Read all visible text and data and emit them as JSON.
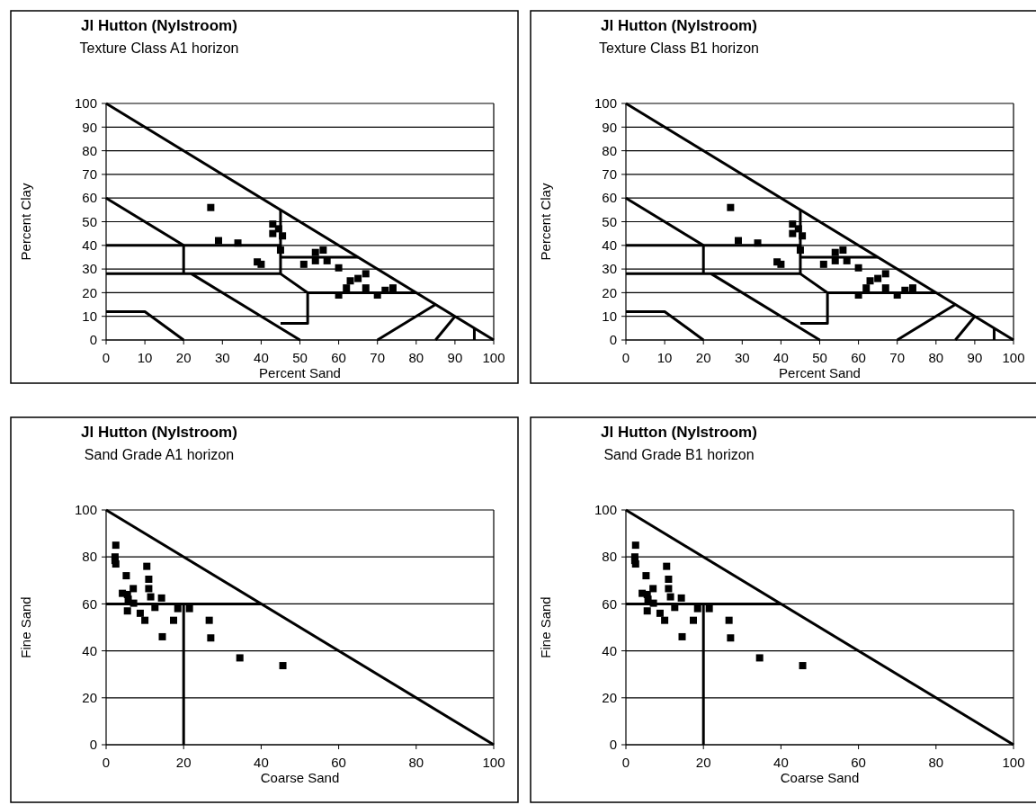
{
  "chart_data": [
    {
      "type": "scatter",
      "title": "Jl Hutton (Nylstroom)",
      "subtitle": "Texture Class A1 horizon",
      "xlabel": "Percent Sand",
      "ylabel": "Percent Clay",
      "xlim": [
        0,
        100
      ],
      "ylim": [
        0,
        100
      ],
      "xticks": [
        0,
        10,
        20,
        30,
        40,
        50,
        60,
        70,
        80,
        90,
        100
      ],
      "yticks": [
        0,
        10,
        20,
        30,
        40,
        50,
        60,
        70,
        80,
        90,
        100
      ],
      "grid": "y",
      "series": [
        {
          "type": "line",
          "color": "#000000",
          "x": [
            0,
            100
          ],
          "values": [
            100,
            0
          ]
        },
        {
          "type": "line",
          "color": "#000000",
          "x": [
            0,
            20
          ],
          "values": [
            60,
            40
          ]
        },
        {
          "type": "line",
          "color": "#000000",
          "x": [
            0,
            45
          ],
          "values": [
            40,
            40
          ]
        },
        {
          "type": "line",
          "color": "#000000",
          "x": [
            20,
            20
          ],
          "values": [
            40,
            28
          ]
        },
        {
          "type": "line",
          "color": "#000000",
          "x": [
            0,
            45
          ],
          "values": [
            28,
            28
          ]
        },
        {
          "type": "line",
          "color": "#000000",
          "x": [
            45,
            45
          ],
          "values": [
            55,
            28
          ]
        },
        {
          "type": "line",
          "color": "#000000",
          "x": [
            45,
            65
          ],
          "values": [
            35,
            35
          ]
        },
        {
          "type": "line",
          "color": "#000000",
          "x": [
            45,
            52,
            52,
            45
          ],
          "values": [
            28,
            20,
            7,
            7
          ]
        },
        {
          "type": "line",
          "color": "#000000",
          "x": [
            52,
            80
          ],
          "values": [
            20,
            20
          ]
        },
        {
          "type": "line",
          "color": "#000000",
          "x": [
            22,
            50
          ],
          "values": [
            28,
            0
          ]
        },
        {
          "type": "line",
          "color": "#000000",
          "x": [
            0,
            10,
            20
          ],
          "values": [
            12,
            12,
            0
          ]
        },
        {
          "type": "line",
          "color": "#000000",
          "x": [
            70,
            85
          ],
          "values": [
            0,
            15
          ]
        },
        {
          "type": "line",
          "color": "#000000",
          "x": [
            85,
            90
          ],
          "values": [
            0,
            10
          ]
        },
        {
          "type": "line",
          "color": "#000000",
          "x": [
            95,
            95
          ],
          "values": [
            0,
            5
          ]
        },
        {
          "color": "#000000",
          "marker": "square",
          "x": [
            27,
            29,
            34,
            43,
            44.5,
            43,
            45.5,
            45,
            39,
            40,
            51,
            54,
            56,
            54,
            57,
            60,
            67,
            65,
            63,
            62,
            60,
            67,
            70,
            72,
            74
          ],
          "values": [
            56,
            42,
            41,
            49,
            47,
            45,
            44,
            38,
            33,
            32,
            32,
            37,
            38,
            33.5,
            33.5,
            30.5,
            28,
            26,
            25,
            22,
            19,
            22,
            19,
            21,
            22
          ]
        }
      ]
    },
    {
      "type": "scatter",
      "title": "Jl Hutton (Nylstroom)",
      "subtitle": "Texture Class B1 horizon",
      "xlabel": "Percent Sand",
      "ylabel": "Percent Clay",
      "xlim": [
        0,
        100
      ],
      "ylim": [
        0,
        100
      ],
      "xticks": [
        0,
        10,
        20,
        30,
        40,
        50,
        60,
        70,
        80,
        90,
        100
      ],
      "yticks": [
        0,
        10,
        20,
        30,
        40,
        50,
        60,
        70,
        80,
        90,
        100
      ],
      "grid": "y",
      "series": [
        {
          "type": "line",
          "color": "#000000",
          "x": [
            0,
            100
          ],
          "values": [
            100,
            0
          ]
        },
        {
          "type": "line",
          "color": "#000000",
          "x": [
            0,
            20
          ],
          "values": [
            60,
            40
          ]
        },
        {
          "type": "line",
          "color": "#000000",
          "x": [
            0,
            45
          ],
          "values": [
            40,
            40
          ]
        },
        {
          "type": "line",
          "color": "#000000",
          "x": [
            20,
            20
          ],
          "values": [
            40,
            28
          ]
        },
        {
          "type": "line",
          "color": "#000000",
          "x": [
            0,
            45
          ],
          "values": [
            28,
            28
          ]
        },
        {
          "type": "line",
          "color": "#000000",
          "x": [
            45,
            45
          ],
          "values": [
            55,
            28
          ]
        },
        {
          "type": "line",
          "color": "#000000",
          "x": [
            45,
            65
          ],
          "values": [
            35,
            35
          ]
        },
        {
          "type": "line",
          "color": "#000000",
          "x": [
            45,
            52,
            52,
            45
          ],
          "values": [
            28,
            20,
            7,
            7
          ]
        },
        {
          "type": "line",
          "color": "#000000",
          "x": [
            52,
            80
          ],
          "values": [
            20,
            20
          ]
        },
        {
          "type": "line",
          "color": "#000000",
          "x": [
            22,
            50
          ],
          "values": [
            28,
            0
          ]
        },
        {
          "type": "line",
          "color": "#000000",
          "x": [
            0,
            10,
            20
          ],
          "values": [
            12,
            12,
            0
          ]
        },
        {
          "type": "line",
          "color": "#000000",
          "x": [
            70,
            85
          ],
          "values": [
            0,
            15
          ]
        },
        {
          "type": "line",
          "color": "#000000",
          "x": [
            85,
            90
          ],
          "values": [
            0,
            10
          ]
        },
        {
          "type": "line",
          "color": "#000000",
          "x": [
            95,
            95
          ],
          "values": [
            0,
            5
          ]
        },
        {
          "color": "#000000",
          "marker": "square",
          "x": [
            27,
            29,
            34,
            43,
            44.5,
            43,
            45.5,
            45,
            39,
            40,
            51,
            54,
            56,
            54,
            57,
            60,
            67,
            65,
            63,
            62,
            60,
            67,
            70,
            72,
            74
          ],
          "values": [
            56,
            42,
            41,
            49,
            47,
            45,
            44,
            38,
            33,
            32,
            32,
            37,
            38,
            33.5,
            33.5,
            30.5,
            28,
            26,
            25,
            22,
            19,
            22,
            19,
            21,
            22
          ]
        }
      ]
    },
    {
      "type": "scatter",
      "title": "Jl Hutton (Nylstroom)",
      "subtitle": "Sand Grade A1 horizon",
      "xlabel": "Coarse Sand",
      "ylabel": "Fine Sand",
      "xlim": [
        0,
        100
      ],
      "ylim": [
        0,
        100
      ],
      "xticks": [
        0,
        20,
        40,
        60,
        80,
        100
      ],
      "yticks": [
        0,
        20,
        40,
        60,
        80,
        100
      ],
      "grid": "y",
      "series": [
        {
          "type": "line",
          "color": "#000000",
          "x": [
            0,
            100
          ],
          "values": [
            100,
            0
          ]
        },
        {
          "type": "line",
          "color": "#000000",
          "x": [
            0,
            40
          ],
          "values": [
            60,
            60
          ]
        },
        {
          "type": "line",
          "color": "#000000",
          "x": [
            20,
            20
          ],
          "values": [
            60,
            0
          ]
        },
        {
          "color": "#000000",
          "marker": "square",
          "x": [
            2.5,
            2.3,
            2.3,
            2.5,
            5.2,
            4.2,
            5.5,
            7,
            5.7,
            7.1,
            5.5,
            8.8,
            10,
            10.5,
            11,
            11,
            11.5,
            12.6,
            14.3,
            14.5,
            17.4,
            18.5,
            21.5,
            26.6,
            27,
            34.5,
            45.6
          ],
          "values": [
            85,
            80,
            78.5,
            77,
            72,
            64.5,
            64,
            66.5,
            62,
            60.3,
            57,
            56,
            53,
            76,
            70.5,
            66.5,
            63,
            58.5,
            62.5,
            46,
            53,
            58,
            58,
            53,
            45.5,
            37,
            33.7
          ]
        }
      ]
    },
    {
      "type": "scatter",
      "title": "Jl Hutton (Nylstroom)",
      "subtitle": "Sand Grade B1 horizon",
      "xlabel": "Coarse Sand",
      "ylabel": "Fine Sand",
      "xlim": [
        0,
        100
      ],
      "ylim": [
        0,
        100
      ],
      "xticks": [
        0,
        20,
        40,
        60,
        80,
        100
      ],
      "yticks": [
        0,
        20,
        40,
        60,
        80,
        100
      ],
      "grid": "y",
      "series": [
        {
          "type": "line",
          "color": "#000000",
          "x": [
            0,
            100
          ],
          "values": [
            100,
            0
          ]
        },
        {
          "type": "line",
          "color": "#000000",
          "x": [
            0,
            40
          ],
          "values": [
            60,
            60
          ]
        },
        {
          "type": "line",
          "color": "#000000",
          "x": [
            20,
            20
          ],
          "values": [
            60,
            0
          ]
        },
        {
          "color": "#000000",
          "marker": "square",
          "x": [
            2.5,
            2.3,
            2.3,
            2.5,
            5.2,
            4.2,
            5.5,
            7,
            5.7,
            7.1,
            5.5,
            8.8,
            10,
            10.5,
            11,
            11,
            11.5,
            12.6,
            14.3,
            14.5,
            17.4,
            18.5,
            21.5,
            26.6,
            27,
            34.5,
            45.6
          ],
          "values": [
            85,
            80,
            78.5,
            77,
            72,
            64.5,
            64,
            66.5,
            62,
            60.3,
            57,
            56,
            53,
            76,
            70.5,
            66.5,
            63,
            58.5,
            62.5,
            46,
            53,
            58,
            58,
            53,
            45.5,
            37,
            33.7
          ]
        }
      ]
    }
  ]
}
